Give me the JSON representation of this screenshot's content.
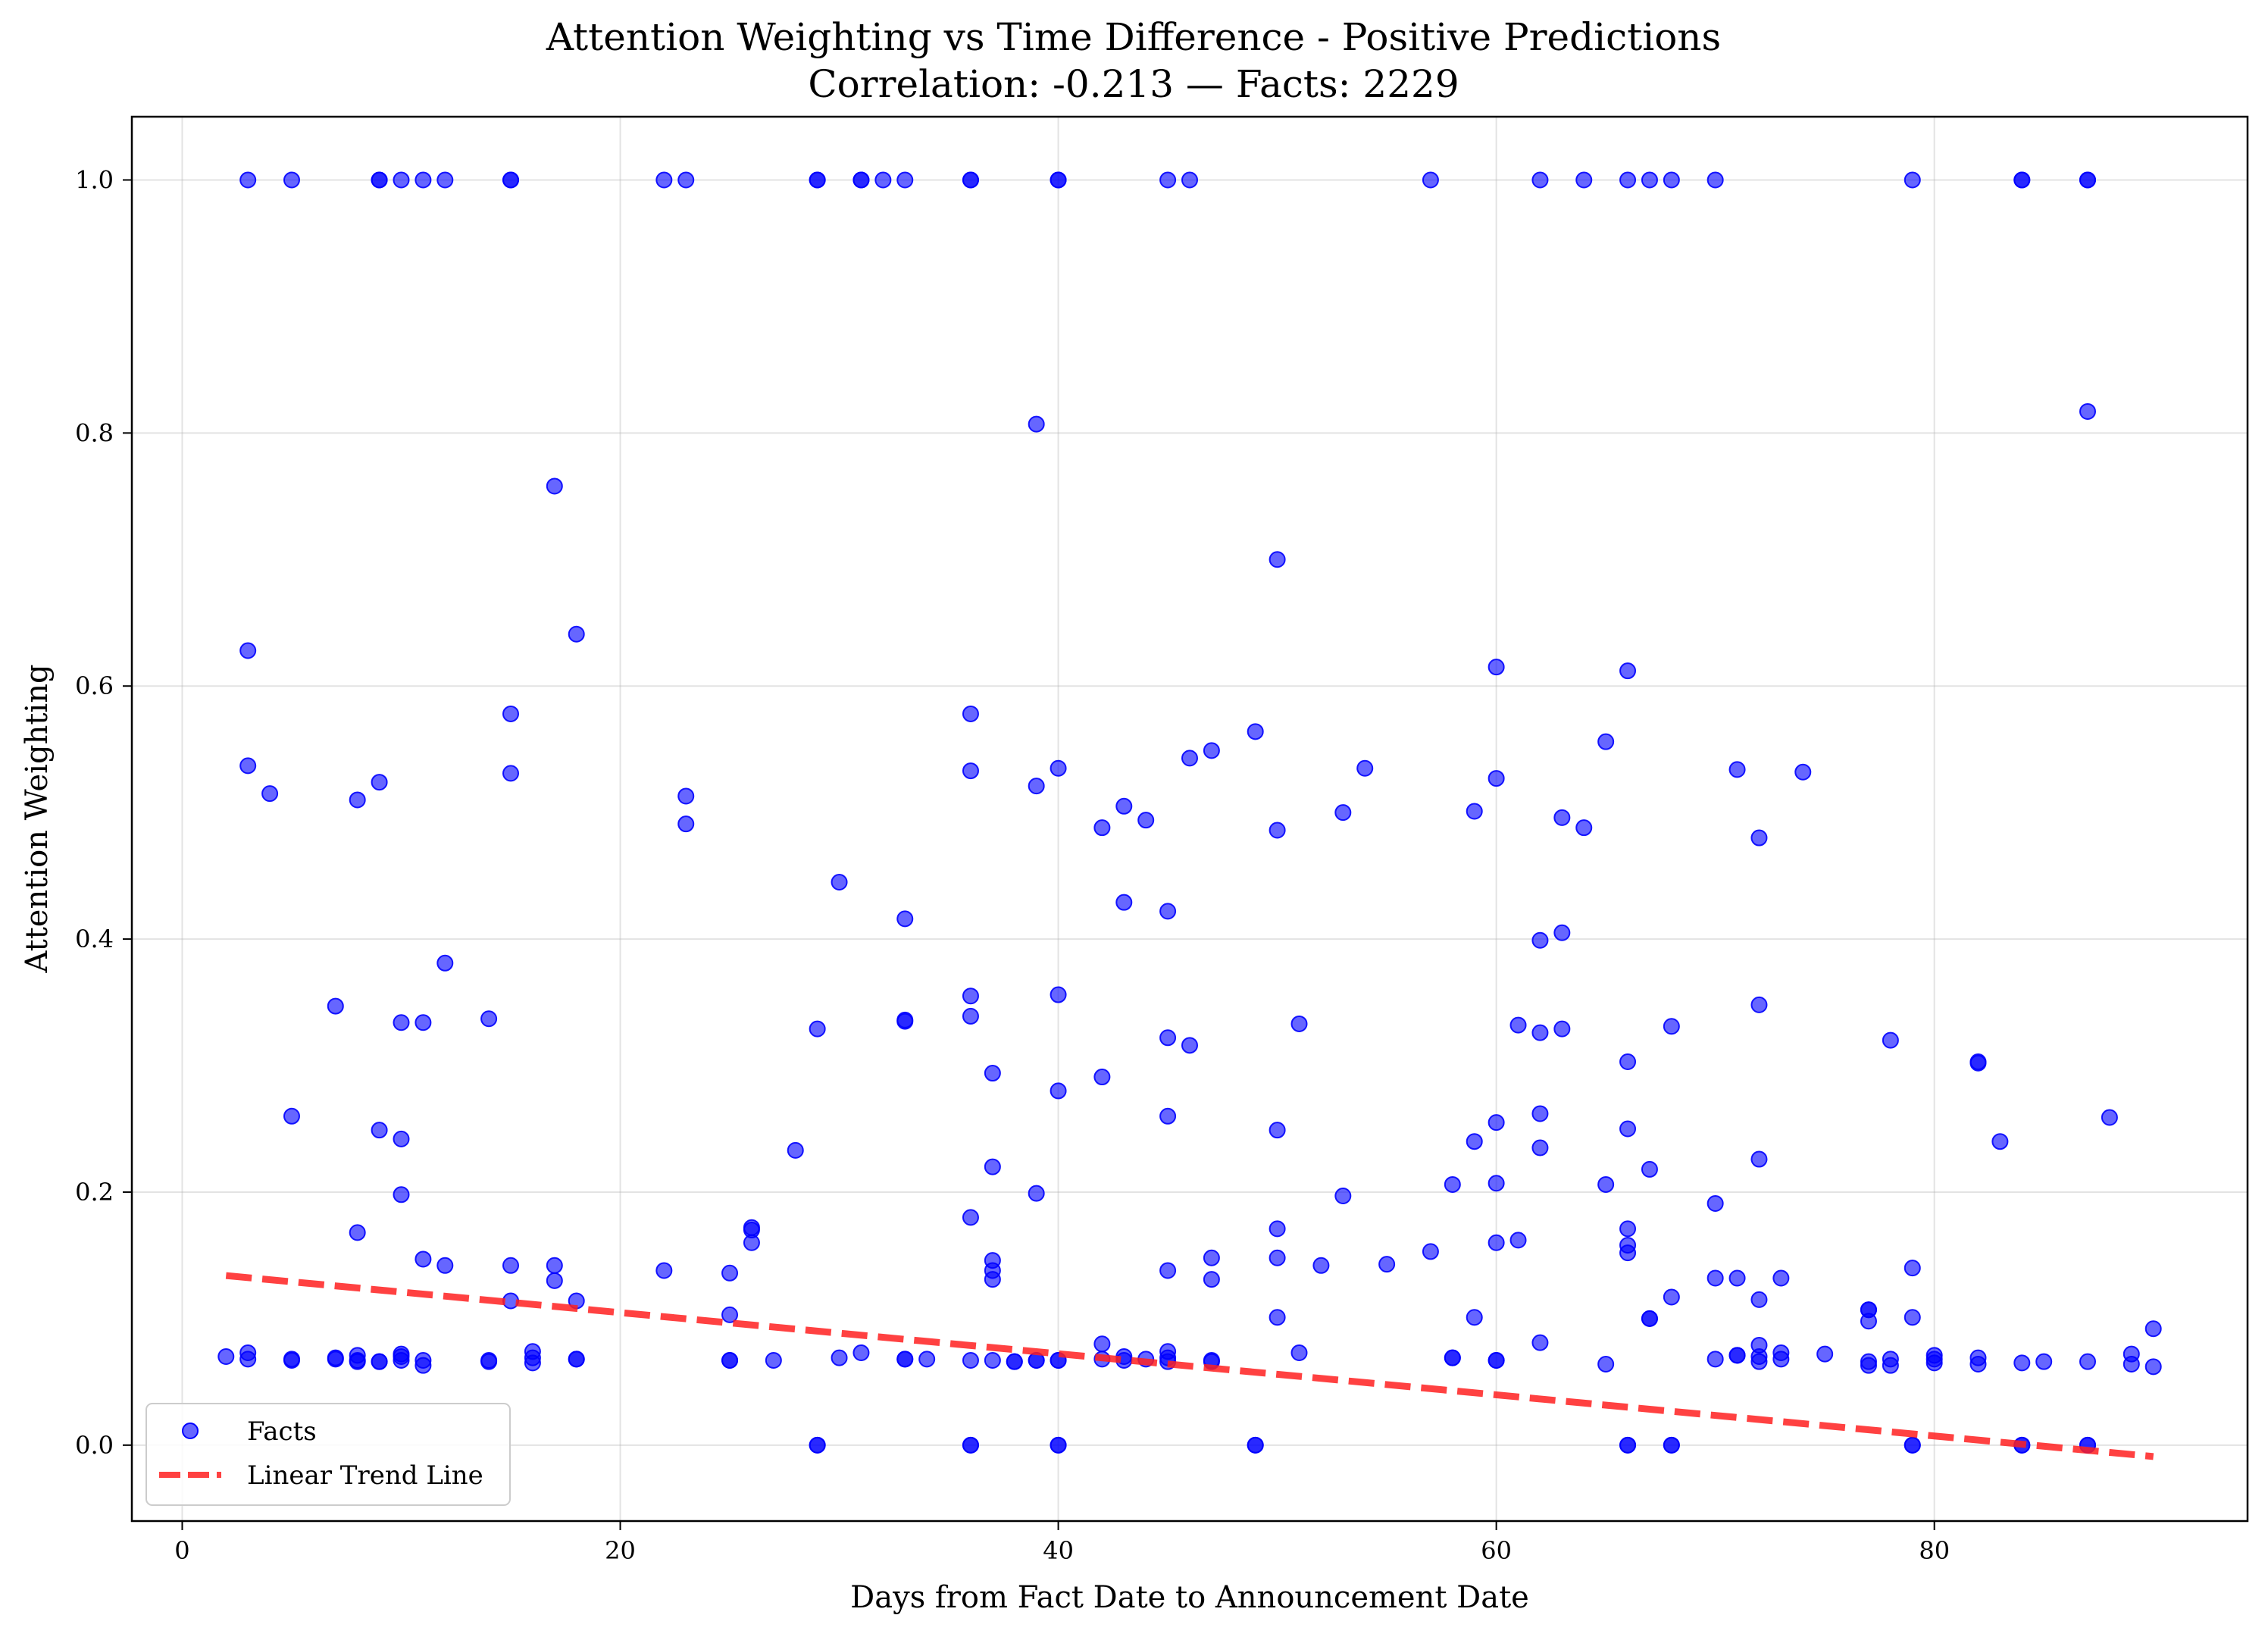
{
  "chart_data": {
    "type": "scatter",
    "title": "Attention Weighting vs Time Difference - Positive Predictions",
    "subtitle": "Correlation: -0.213 — Facts: 2229",
    "xlabel": "Days from Fact Date to Announcement Date",
    "ylabel": "Attention Weighting",
    "xlim": [
      -2.3,
      94.3
    ],
    "ylim": [
      -0.06,
      1.05
    ],
    "xticks": [
      0,
      20,
      40,
      60,
      80
    ],
    "yticks": [
      0.0,
      0.2,
      0.4,
      0.6,
      0.8,
      1.0
    ],
    "xtick_labels": [
      "0",
      "20",
      "40",
      "60",
      "80"
    ],
    "ytick_labels": [
      "0.0",
      "0.2",
      "0.4",
      "0.6",
      "0.8",
      "1.0"
    ],
    "grid": true,
    "legend": {
      "position": "bottom-left",
      "entries": [
        "Facts",
        "Linear Trend Line"
      ]
    },
    "colors": {
      "points": "#0000ff",
      "trend": "#ff2020"
    },
    "series": [
      {
        "name": "Facts",
        "type": "scatter",
        "points": [
          [
            3,
            1.0
          ],
          [
            5,
            1.0
          ],
          [
            9,
            1.0
          ],
          [
            9,
            1.0
          ],
          [
            10,
            1.0
          ],
          [
            11,
            1.0
          ],
          [
            12,
            1.0
          ],
          [
            15,
            1.0
          ],
          [
            15,
            1.0
          ],
          [
            22,
            1.0
          ],
          [
            23,
            1.0
          ],
          [
            29,
            1.0
          ],
          [
            29,
            1.0
          ],
          [
            31,
            1.0
          ],
          [
            31,
            1.0
          ],
          [
            32,
            1.0
          ],
          [
            33,
            1.0
          ],
          [
            36,
            1.0
          ],
          [
            36,
            1.0
          ],
          [
            40,
            1.0
          ],
          [
            40,
            1.0
          ],
          [
            45,
            1.0
          ],
          [
            46,
            1.0
          ],
          [
            57,
            1.0
          ],
          [
            62,
            1.0
          ],
          [
            64,
            1.0
          ],
          [
            66,
            1.0
          ],
          [
            67,
            1.0
          ],
          [
            68,
            1.0
          ],
          [
            70,
            1.0
          ],
          [
            79,
            1.0
          ],
          [
            84,
            1.0
          ],
          [
            84,
            1.0
          ],
          [
            87,
            1.0
          ],
          [
            87,
            1.0
          ],
          [
            39,
            0.807
          ],
          [
            87,
            0.817
          ],
          [
            17,
            0.758
          ],
          [
            50,
            0.7
          ],
          [
            18,
            0.641
          ],
          [
            3,
            0.628
          ],
          [
            60,
            0.615
          ],
          [
            66,
            0.612
          ],
          [
            15,
            0.578
          ],
          [
            36,
            0.578
          ],
          [
            49,
            0.564
          ],
          [
            65,
            0.556
          ],
          [
            47,
            0.549
          ],
          [
            46,
            0.543
          ],
          [
            3,
            0.537
          ],
          [
            40,
            0.535
          ],
          [
            54,
            0.535
          ],
          [
            71,
            0.534
          ],
          [
            36,
            0.533
          ],
          [
            74,
            0.532
          ],
          [
            15,
            0.531
          ],
          [
            60,
            0.527
          ],
          [
            9,
            0.524
          ],
          [
            39,
            0.521
          ],
          [
            4,
            0.515
          ],
          [
            23,
            0.513
          ],
          [
            8,
            0.51
          ],
          [
            43,
            0.505
          ],
          [
            59,
            0.501
          ],
          [
            53,
            0.5
          ],
          [
            63,
            0.496
          ],
          [
            44,
            0.494
          ],
          [
            23,
            0.491
          ],
          [
            42,
            0.488
          ],
          [
            64,
            0.488
          ],
          [
            50,
            0.486
          ],
          [
            72,
            0.48
          ],
          [
            30,
            0.445
          ],
          [
            43,
            0.429
          ],
          [
            45,
            0.422
          ],
          [
            33,
            0.416
          ],
          [
            63,
            0.405
          ],
          [
            62,
            0.399
          ],
          [
            12,
            0.381
          ],
          [
            40,
            0.356
          ],
          [
            36,
            0.355
          ],
          [
            72,
            0.348
          ],
          [
            7,
            0.347
          ],
          [
            36,
            0.339
          ],
          [
            14,
            0.337
          ],
          [
            33,
            0.336
          ],
          [
            33,
            0.335
          ],
          [
            10,
            0.334
          ],
          [
            11,
            0.334
          ],
          [
            51,
            0.333
          ],
          [
            61,
            0.332
          ],
          [
            68,
            0.331
          ],
          [
            29,
            0.329
          ],
          [
            63,
            0.329
          ],
          [
            62,
            0.326
          ],
          [
            45,
            0.322
          ],
          [
            78,
            0.32
          ],
          [
            46,
            0.316
          ],
          [
            66,
            0.303
          ],
          [
            82,
            0.303
          ],
          [
            82,
            0.302
          ],
          [
            37,
            0.294
          ],
          [
            42,
            0.291
          ],
          [
            40,
            0.28
          ],
          [
            5,
            0.26
          ],
          [
            45,
            0.26
          ],
          [
            88,
            0.259
          ],
          [
            62,
            0.262
          ],
          [
            60,
            0.255
          ],
          [
            9,
            0.249
          ],
          [
            50,
            0.249
          ],
          [
            66,
            0.25
          ],
          [
            10,
            0.242
          ],
          [
            59,
            0.24
          ],
          [
            83,
            0.24
          ],
          [
            62,
            0.235
          ],
          [
            28,
            0.233
          ],
          [
            72,
            0.226
          ],
          [
            37,
            0.22
          ],
          [
            67,
            0.218
          ],
          [
            58,
            0.206
          ],
          [
            60,
            0.207
          ],
          [
            65,
            0.206
          ],
          [
            10,
            0.198
          ],
          [
            39,
            0.199
          ],
          [
            53,
            0.197
          ],
          [
            70,
            0.191
          ],
          [
            36,
            0.18
          ],
          [
            26,
            0.172
          ],
          [
            26,
            0.17
          ],
          [
            50,
            0.171
          ],
          [
            66,
            0.171
          ],
          [
            8,
            0.168
          ],
          [
            61,
            0.162
          ],
          [
            26,
            0.16
          ],
          [
            60,
            0.16
          ],
          [
            66,
            0.158
          ],
          [
            57,
            0.153
          ],
          [
            66,
            0.152
          ],
          [
            11,
            0.147
          ],
          [
            47,
            0.148
          ],
          [
            50,
            0.148
          ],
          [
            37,
            0.146
          ],
          [
            12,
            0.142
          ],
          [
            15,
            0.142
          ],
          [
            17,
            0.142
          ],
          [
            52,
            0.142
          ],
          [
            55,
            0.143
          ],
          [
            79,
            0.14
          ],
          [
            22,
            0.138
          ],
          [
            45,
            0.138
          ],
          [
            25,
            0.136
          ],
          [
            37,
            0.138
          ],
          [
            37,
            0.131
          ],
          [
            47,
            0.131
          ],
          [
            70,
            0.132
          ],
          [
            71,
            0.132
          ],
          [
            73,
            0.132
          ],
          [
            17,
            0.13
          ],
          [
            68,
            0.117
          ],
          [
            15,
            0.114
          ],
          [
            18,
            0.114
          ],
          [
            72,
            0.115
          ],
          [
            77,
            0.107
          ],
          [
            77,
            0.107
          ],
          [
            25,
            0.103
          ],
          [
            50,
            0.101
          ],
          [
            59,
            0.101
          ],
          [
            67,
            0.1
          ],
          [
            67,
            0.1
          ],
          [
            79,
            0.101
          ],
          [
            77,
            0.098
          ],
          [
            90,
            0.092
          ],
          [
            62,
            0.081
          ],
          [
            42,
            0.08
          ],
          [
            72,
            0.079
          ],
          [
            16,
            0.074
          ],
          [
            3,
            0.073
          ],
          [
            31,
            0.073
          ],
          [
            45,
            0.074
          ],
          [
            51,
            0.073
          ],
          [
            73,
            0.073
          ],
          [
            75,
            0.072
          ],
          [
            89,
            0.072
          ],
          [
            2,
            0.07
          ],
          [
            3,
            0.068
          ],
          [
            5,
            0.067
          ],
          [
            5,
            0.068
          ],
          [
            7,
            0.069
          ],
          [
            7,
            0.068
          ],
          [
            8,
            0.071
          ],
          [
            8,
            0.067
          ],
          [
            8,
            0.066
          ],
          [
            9,
            0.066
          ],
          [
            9,
            0.066
          ],
          [
            10,
            0.072
          ],
          [
            10,
            0.07
          ],
          [
            10,
            0.067
          ],
          [
            11,
            0.067
          ],
          [
            11,
            0.063
          ],
          [
            14,
            0.067
          ],
          [
            14,
            0.066
          ],
          [
            16,
            0.069
          ],
          [
            16,
            0.065
          ],
          [
            18,
            0.068
          ],
          [
            18,
            0.068
          ],
          [
            25,
            0.067
          ],
          [
            25,
            0.067
          ],
          [
            27,
            0.067
          ],
          [
            30,
            0.069
          ],
          [
            33,
            0.068
          ],
          [
            33,
            0.068
          ],
          [
            34,
            0.068
          ],
          [
            36,
            0.067
          ],
          [
            37,
            0.067
          ],
          [
            38,
            0.066
          ],
          [
            38,
            0.066
          ],
          [
            39,
            0.067
          ],
          [
            39,
            0.067
          ],
          [
            40,
            0.067
          ],
          [
            40,
            0.067
          ],
          [
            42,
            0.068
          ],
          [
            43,
            0.07
          ],
          [
            43,
            0.067
          ],
          [
            44,
            0.068
          ],
          [
            45,
            0.069
          ],
          [
            45,
            0.066
          ],
          [
            47,
            0.067
          ],
          [
            47,
            0.066
          ],
          [
            58,
            0.069
          ],
          [
            58,
            0.069
          ],
          [
            60,
            0.067
          ],
          [
            60,
            0.067
          ],
          [
            65,
            0.064
          ],
          [
            70,
            0.068
          ],
          [
            71,
            0.071
          ],
          [
            71,
            0.071
          ],
          [
            72,
            0.07
          ],
          [
            72,
            0.066
          ],
          [
            73,
            0.068
          ],
          [
            77,
            0.066
          ],
          [
            77,
            0.063
          ],
          [
            78,
            0.068
          ],
          [
            78,
            0.063
          ],
          [
            80,
            0.068
          ],
          [
            80,
            0.065
          ],
          [
            80,
            0.071
          ],
          [
            82,
            0.069
          ],
          [
            82,
            0.064
          ],
          [
            84,
            0.065
          ],
          [
            85,
            0.066
          ],
          [
            87,
            0.066
          ],
          [
            89,
            0.064
          ],
          [
            90,
            0.062
          ],
          [
            29,
            0.0
          ],
          [
            29,
            0.0
          ],
          [
            36,
            0.0
          ],
          [
            36,
            0.0
          ],
          [
            40,
            0.0
          ],
          [
            40,
            0.0
          ],
          [
            49,
            0.0
          ],
          [
            49,
            0.0
          ],
          [
            66,
            0.0
          ],
          [
            66,
            0.0
          ],
          [
            68,
            0.0
          ],
          [
            68,
            0.0
          ],
          [
            79,
            0.0
          ],
          [
            79,
            0.0
          ],
          [
            84,
            0.0
          ],
          [
            84,
            0.0
          ],
          [
            87,
            0.0
          ],
          [
            87,
            0.0
          ]
        ]
      },
      {
        "name": "Linear Trend Line",
        "type": "line",
        "points": [
          [
            2,
            0.134
          ],
          [
            90,
            -0.009
          ]
        ]
      }
    ]
  }
}
